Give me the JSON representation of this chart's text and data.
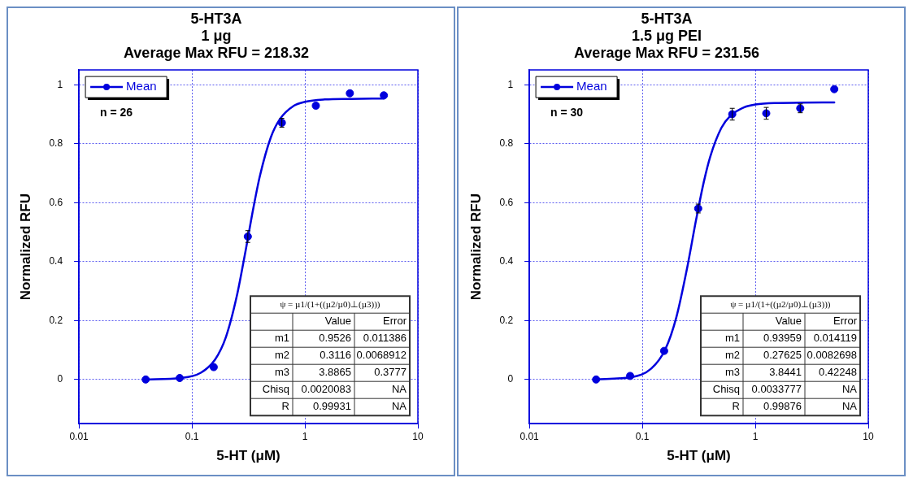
{
  "chart_data": [
    {
      "type": "scatter",
      "title": "5-HT3A\n1 μg\nAverage Max RFU = 218.32",
      "xlabel": "5-HT (μM)",
      "ylabel": "Normalized RFU",
      "log": "x",
      "xlim": [
        0.01,
        10
      ],
      "xticks": [
        0.01,
        0.1,
        1,
        10
      ],
      "ylim": [
        -0.15,
        1.05
      ],
      "yticks": [
        0,
        0.2,
        0.4,
        0.6,
        0.8,
        1
      ],
      "grid": true,
      "legend": "top left",
      "annotations": [
        "n = 26",
        "ψ = µ1/(1+((µ2/µ0)⊥(µ3)))",
        "Value",
        "Error",
        "m1",
        "0.9526",
        "0.011386",
        "m2",
        "0.3116",
        "0.0068912",
        "m3",
        "3.8865",
        "0.3777",
        "Chisq",
        "0.0020083",
        "NA",
        "R",
        "0.99931",
        "NA"
      ],
      "series": [
        {
          "type": "line",
          "color": "#0000dd",
          "marker": "none",
          "x": [
            0.039,
            0.08,
            0.12,
            0.16,
            0.2,
            0.25,
            0.3,
            0.35,
            0.4,
            0.5,
            0.6,
            0.8,
            1,
            1.5,
            2.5,
            5
          ],
          "values": [
            0,
            0.005,
            0.023,
            0.067,
            0.144,
            0.284,
            0.441,
            0.582,
            0.691,
            0.822,
            0.883,
            0.929,
            0.942,
            0.95,
            0.952,
            0.953
          ]
        },
        {
          "type": "scatter",
          "name": "Mean",
          "color": "#0000dd",
          "marker": "circle",
          "x": [
            0.039,
            0.078,
            0.156,
            0.3125,
            0.625,
            1.25,
            2.5,
            5
          ],
          "values": [
            0,
            0.005,
            0.042,
            0.485,
            0.871,
            0.929,
            0.971,
            0.964
          ],
          "errors": [
            null,
            null,
            null,
            0.02,
            0.015,
            null,
            null,
            null
          ]
        }
      ]
    },
    {
      "type": "scatter",
      "title": "5-HT3A\n1.5 μg PEI\nAverage Max RFU = 231.56",
      "xlabel": "5-HT (μM)",
      "ylabel": "Normalized RFU",
      "log": "x",
      "xlim": [
        0.01,
        10
      ],
      "xticks": [
        0.01,
        0.1,
        1,
        10
      ],
      "ylim": [
        -0.15,
        1.05
      ],
      "yticks": [
        0,
        0.2,
        0.4,
        0.6,
        0.8,
        1
      ],
      "grid": true,
      "legend": "top left",
      "annotations": [
        "n = 30",
        "ψ = µ1/(1+((µ2/µ0)⊥(µ3)))",
        "Value",
        "Error",
        "m1",
        "0.93959",
        "0.014119",
        "m2",
        "0.27625",
        "0.0082698",
        "m3",
        "3.8441",
        "0.42248",
        "Chisq",
        "0.0033777",
        "NA",
        "R",
        "0.99876",
        "NA"
      ],
      "series": [
        {
          "type": "line",
          "color": "#0000dd",
          "marker": "none",
          "x": [
            0.039,
            0.08,
            0.12,
            0.16,
            0.2,
            0.25,
            0.3,
            0.35,
            0.4,
            0.5,
            0.6,
            0.8,
            1,
            1.5,
            2.5,
            5
          ],
          "values": [
            0.001,
            0.008,
            0.037,
            0.103,
            0.211,
            0.381,
            0.544,
            0.67,
            0.757,
            0.853,
            0.894,
            0.924,
            0.933,
            0.938,
            0.939,
            0.94
          ]
        },
        {
          "type": "scatter",
          "name": "Mean",
          "color": "#0000dd",
          "marker": "circle",
          "x": [
            0.039,
            0.078,
            0.156,
            0.3125,
            0.625,
            1.25,
            2.5,
            5
          ],
          "values": [
            0,
            0.012,
            0.097,
            0.58,
            0.9,
            0.903,
            0.92,
            0.985
          ],
          "errors": [
            null,
            null,
            null,
            0.015,
            0.02,
            0.02,
            0.015,
            null
          ]
        }
      ]
    }
  ]
}
